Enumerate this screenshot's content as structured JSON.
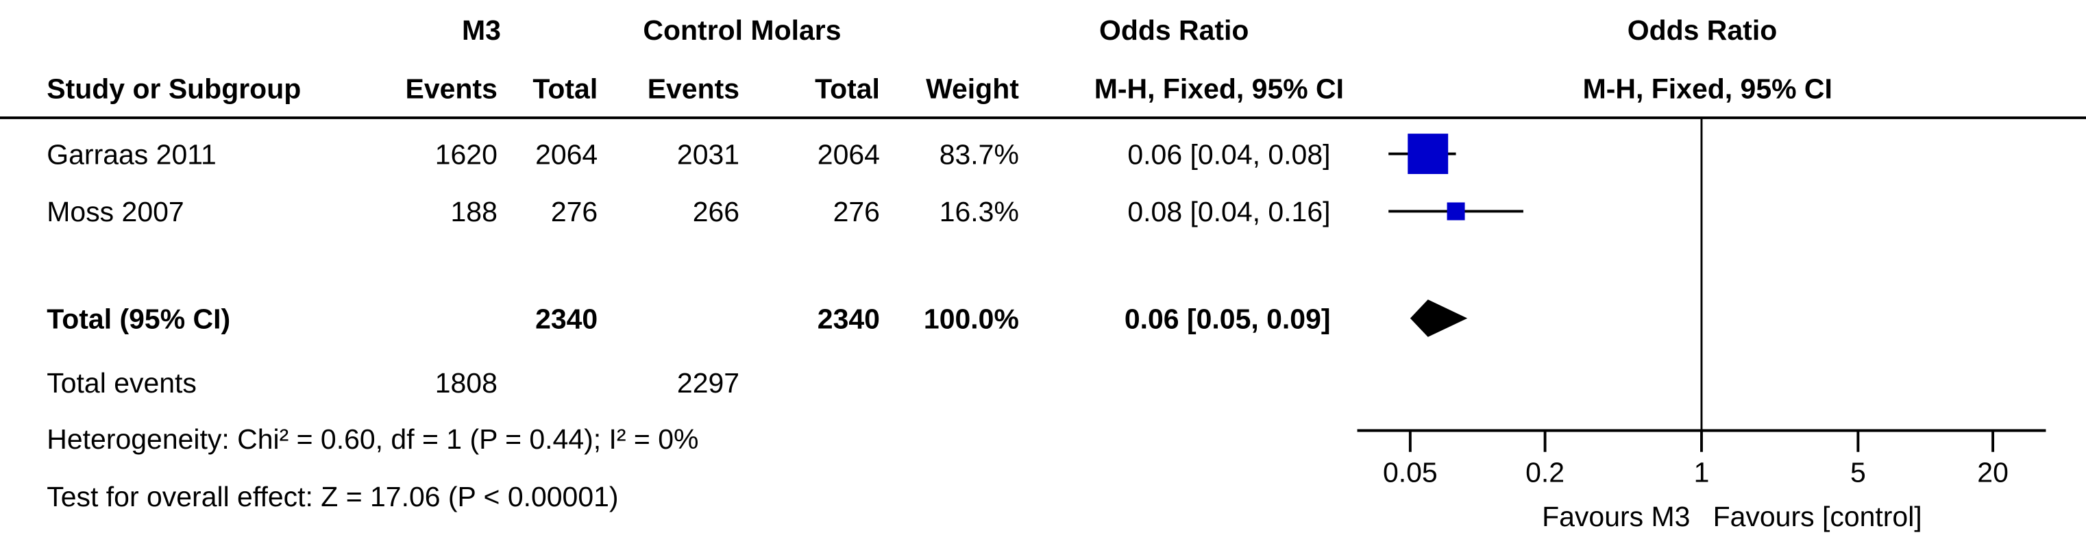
{
  "chart_data": {
    "type": "forest",
    "header": {
      "group1": "M3",
      "group2": "Control Molars",
      "effect_table": "Odds Ratio",
      "effect_plot": "Odds Ratio",
      "study": "Study or Subgroup",
      "events1": "Events",
      "total1": "Total",
      "events2": "Events",
      "total2": "Total",
      "weight": "Weight",
      "method_table": "M-H, Fixed, 95% CI",
      "method_plot": "M-H, Fixed, 95% CI"
    },
    "studies": [
      {
        "name": "Garraas 2011",
        "events1": 1620,
        "total1": 2064,
        "events2": 2031,
        "total2": 2064,
        "weight": {
          "value": 83.7,
          "label": "83.7%"
        },
        "or": 0.06,
        "ci_lower": 0.04,
        "ci_upper": 0.08,
        "or_label": "0.06 [0.04, 0.08]"
      },
      {
        "name": "Moss 2007",
        "events1": 188,
        "total1": 276,
        "events2": 266,
        "total2": 276,
        "weight": {
          "value": 16.3,
          "label": "16.3%"
        },
        "or": 0.08,
        "ci_lower": 0.04,
        "ci_upper": 0.16,
        "or_label": "0.08 [0.04, 0.16]"
      }
    ],
    "total": {
      "name": "Total (95% CI)",
      "total1": 2340,
      "total2": 2340,
      "weight": "100.0%",
      "or": 0.06,
      "ci_lower": 0.05,
      "ci_upper": 0.09,
      "or_label": "0.06 [0.05, 0.09]"
    },
    "total_events": {
      "name": "Total events",
      "events1": 1808,
      "events2": 2297
    },
    "heterogeneity": "Heterogeneity: Chi² = 0.60, df = 1 (P = 0.44); I² = 0%",
    "overall_effect": "Test for overall effect: Z = 17.06 (P < 0.00001)",
    "xscale": "log",
    "xlim": [
      0.029,
      34.5
    ],
    "xticks": [
      0.05,
      0.2,
      1,
      5,
      20
    ],
    "reference": 1,
    "xlabel_left": "Favours M3",
    "xlabel_right": "Favours [control]",
    "color": "#0000cc"
  }
}
